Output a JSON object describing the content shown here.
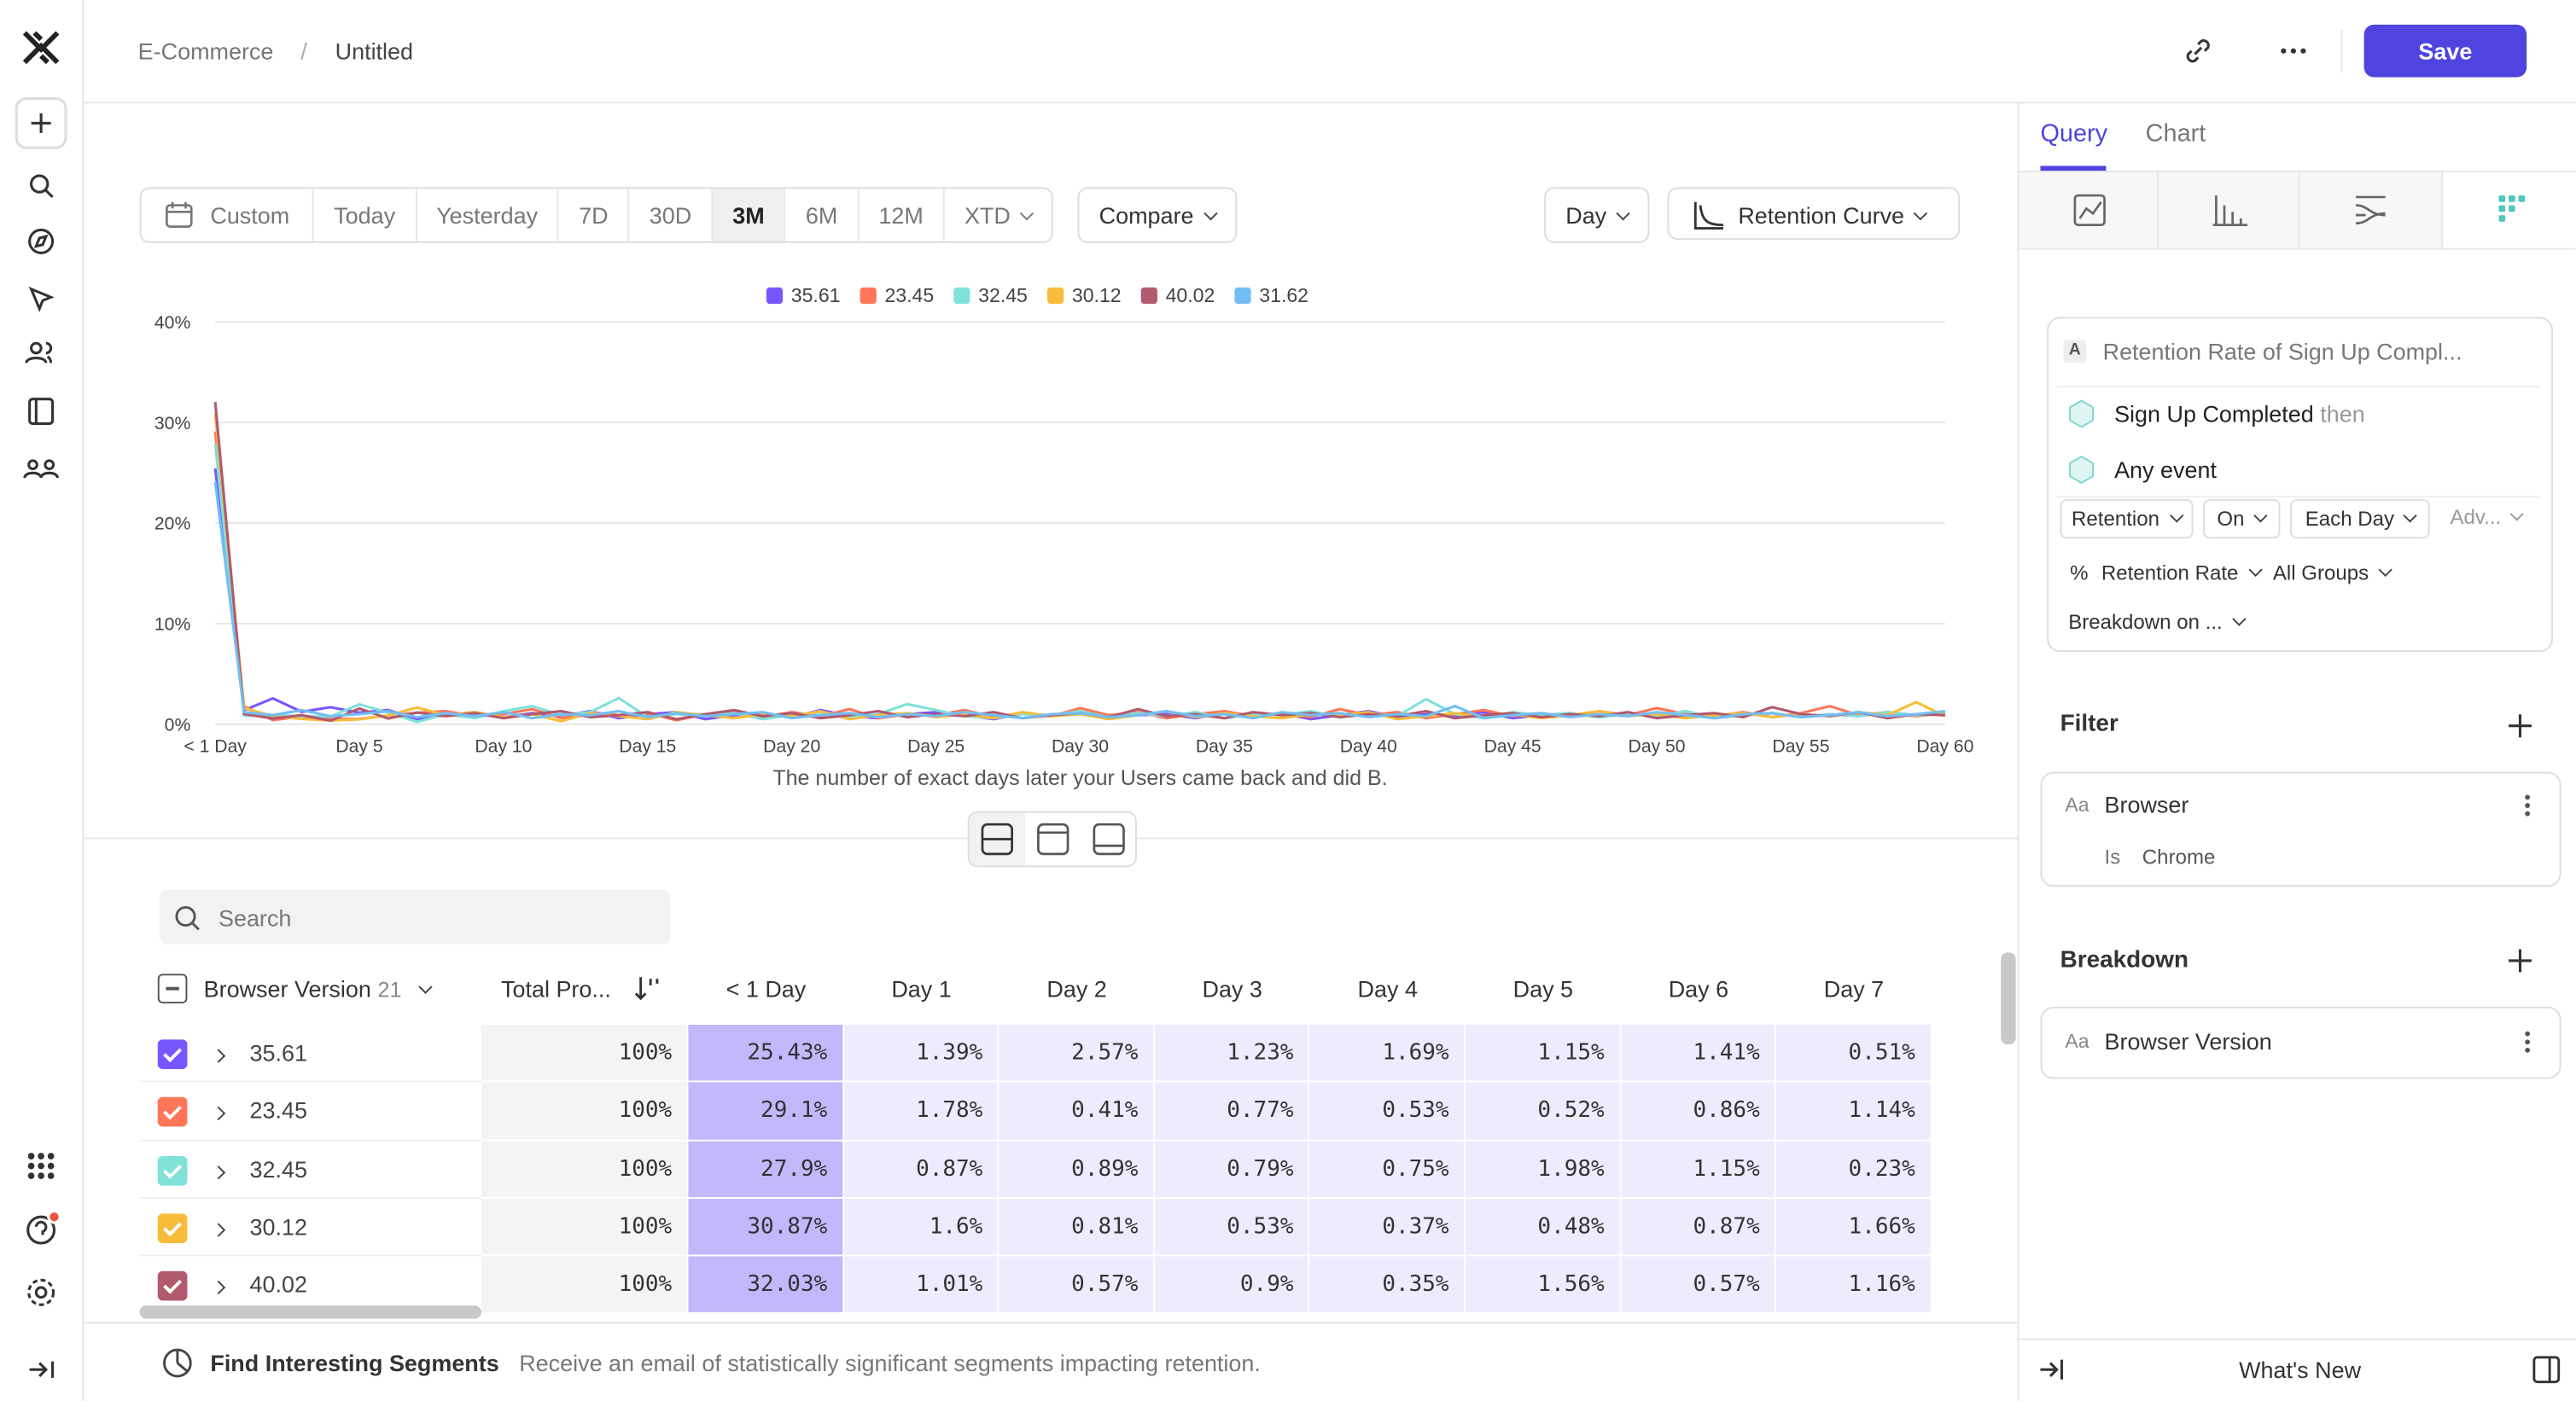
{
  "header": {
    "breadcrumb": [
      "E-Commerce",
      "Untitled"
    ],
    "save": "Save"
  },
  "date_range": {
    "options": [
      "Custom",
      "Today",
      "Yesterday",
      "7D",
      "30D",
      "3M",
      "6M",
      "12M",
      "XTD"
    ],
    "selected": "3M",
    "compare": "Compare",
    "interval": "Day",
    "chart_type": "Retention Curve"
  },
  "chart_data": {
    "type": "line",
    "legend": "top",
    "grid": true,
    "x_label": "The number of exact days later your Users came back and did B.",
    "categories": [
      "< 1 Day",
      null,
      null,
      null,
      null,
      "Day 5",
      null,
      null,
      null,
      null,
      "Day 10",
      null,
      null,
      null,
      null,
      "Day 15",
      null,
      null,
      null,
      null,
      "Day 20",
      null,
      null,
      null,
      null,
      "Day 25",
      null,
      null,
      null,
      null,
      "Day 30",
      null,
      null,
      null,
      null,
      "Day 35",
      null,
      null,
      null,
      null,
      "Day 40",
      null,
      null,
      null,
      null,
      "Day 45",
      null,
      null,
      null,
      null,
      "Day 50",
      null,
      null,
      null,
      null,
      "Day 55",
      null,
      null,
      null,
      null,
      "Day 60"
    ],
    "ylim": [
      0,
      40
    ],
    "yticks": [
      {
        "value": 0,
        "label": "0%"
      },
      {
        "value": 10,
        "label": "10%"
      },
      {
        "value": 20,
        "label": "20%"
      },
      {
        "value": 30,
        "label": "30%"
      },
      {
        "value": 40,
        "label": "40%"
      }
    ],
    "series": [
      {
        "name": "35.61",
        "color": "#7856ff",
        "values": [
          25.43,
          1.39,
          2.57,
          1.23,
          1.69,
          1.15,
          1.41,
          0.51,
          0.9,
          1.2,
          0.7,
          1.1,
          0.8,
          1.3,
          0.6,
          1.0,
          1.2,
          0.5,
          0.9,
          1.1,
          0.7,
          1.4,
          0.8,
          0.6,
          1.0,
          1.2,
          0.9,
          0.5,
          1.1,
          0.8,
          1.3,
          0.7,
          0.9,
          1.0,
          0.6,
          1.2,
          0.8,
          1.1,
          0.5,
          0.9,
          1.3,
          0.7,
          1.0,
          0.8,
          1.2,
          0.6,
          0.9,
          1.1,
          0.7,
          1.0,
          0.8,
          1.3,
          0.6,
          0.9,
          1.1,
          0.7,
          1.0,
          0.8,
          1.2,
          0.9,
          1.0
        ]
      },
      {
        "name": "23.45",
        "color": "#ff7557",
        "values": [
          29.1,
          1.78,
          0.41,
          0.77,
          0.53,
          0.52,
          0.86,
          1.14,
          1.3,
          0.8,
          1.0,
          1.5,
          0.6,
          1.2,
          0.9,
          1.1,
          0.4,
          1.0,
          1.3,
          0.7,
          1.2,
          0.8,
          1.5,
          0.6,
          1.0,
          0.9,
          1.4,
          0.7,
          1.1,
          0.8,
          1.6,
          0.9,
          1.2,
          0.6,
          1.0,
          1.3,
          0.8,
          1.1,
          0.7,
          1.5,
          0.9,
          1.2,
          0.6,
          1.0,
          1.4,
          0.8,
          1.1,
          0.7,
          1.3,
          0.9,
          1.6,
          1.0,
          0.8,
          1.2,
          0.7,
          1.1,
          1.8,
          0.9,
          1.2,
          0.8,
          1.1
        ]
      },
      {
        "name": "32.45",
        "color": "#80e1d9",
        "values": [
          27.9,
          0.87,
          0.89,
          0.79,
          0.75,
          1.98,
          1.15,
          0.23,
          1.0,
          0.6,
          1.3,
          1.8,
          0.9,
          1.2,
          2.6,
          0.7,
          1.0,
          0.8,
          1.1,
          0.5,
          0.9,
          1.2,
          0.7,
          1.0,
          2.0,
          1.4,
          0.8,
          0.6,
          1.0,
          0.9,
          1.3,
          0.7,
          1.1,
          0.8,
          1.2,
          0.6,
          1.0,
          0.9,
          1.3,
          0.7,
          1.1,
          0.8,
          2.5,
          1.0,
          0.6,
          1.2,
          0.9,
          1.1,
          0.7,
          1.0,
          0.8,
          1.3,
          0.6,
          0.9,
          1.1,
          0.7,
          1.0,
          0.8,
          1.2,
          0.9,
          1.0
        ]
      },
      {
        "name": "30.12",
        "color": "#f8bc3b",
        "values": [
          30.87,
          1.6,
          0.81,
          0.53,
          0.37,
          0.48,
          0.87,
          1.66,
          0.9,
          1.2,
          0.7,
          1.0,
          0.3,
          1.1,
          0.8,
          0.5,
          1.2,
          0.9,
          0.6,
          1.0,
          0.8,
          1.3,
          0.5,
          0.9,
          1.1,
          0.7,
          1.0,
          0.6,
          1.2,
          0.8,
          1.0,
          0.5,
          0.9,
          1.3,
          0.7,
          1.1,
          0.8,
          0.6,
          1.0,
          0.9,
          1.2,
          0.5,
          0.8,
          1.1,
          0.7,
          1.0,
          0.6,
          0.9,
          1.3,
          0.8,
          1.0,
          0.6,
          0.9,
          1.1,
          0.7,
          1.0,
          0.8,
          1.2,
          0.9,
          2.2,
          0.8
        ]
      },
      {
        "name": "40.02",
        "color": "#b2596e",
        "values": [
          32.03,
          1.01,
          0.57,
          0.9,
          0.35,
          1.56,
          0.57,
          1.16,
          0.8,
          1.1,
          0.6,
          1.0,
          1.3,
          0.7,
          0.9,
          1.2,
          0.5,
          1.0,
          1.4,
          0.8,
          1.1,
          0.6,
          0.9,
          1.3,
          0.7,
          1.0,
          0.8,
          1.2,
          0.6,
          0.9,
          1.1,
          0.7,
          1.5,
          0.8,
          1.0,
          0.6,
          1.2,
          0.9,
          1.1,
          0.7,
          1.0,
          0.8,
          1.3,
          0.6,
          0.9,
          1.1,
          0.7,
          1.0,
          0.8,
          1.2,
          0.6,
          0.9,
          1.1,
          0.7,
          1.7,
          1.0,
          0.8,
          1.2,
          0.6,
          1.0,
          0.9
        ]
      },
      {
        "name": "31.62",
        "color": "#72bef4",
        "values": [
          24.1,
          1.2,
          0.9,
          1.4,
          0.8,
          1.0,
          1.3,
          0.7,
          1.1,
          0.8,
          1.2,
          0.6,
          1.0,
          0.9,
          1.3,
          0.7,
          1.1,
          0.8,
          1.0,
          1.2,
          0.6,
          0.9,
          1.1,
          0.7,
          1.0,
          0.8,
          1.2,
          0.9,
          0.6,
          1.0,
          1.1,
          0.7,
          0.9,
          1.3,
          0.8,
          1.0,
          0.6,
          1.2,
          0.9,
          1.1,
          0.7,
          1.0,
          0.8,
          1.8,
          0.6,
          0.9,
          1.1,
          0.7,
          1.0,
          0.8,
          1.2,
          0.9,
          0.6,
          1.0,
          1.1,
          0.7,
          0.9,
          1.2,
          0.8,
          1.0,
          1.3
        ]
      }
    ]
  },
  "table": {
    "search_placeholder": "Search",
    "group_count": 21,
    "columns": [
      "Browser Version",
      "Total Pro...",
      "< 1 Day",
      "Day 1",
      "Day 2",
      "Day 3",
      "Day 4",
      "Day 5",
      "Day 6",
      "Day 7"
    ],
    "rows": [
      [
        "35.61",
        "100%",
        "25.43%",
        "1.39%",
        "2.57%",
        "1.23%",
        "1.69%",
        "1.15%",
        "1.41%",
        "0.51%"
      ],
      [
        "23.45",
        "100%",
        "29.1%",
        "1.78%",
        "0.41%",
        "0.77%",
        "0.53%",
        "0.52%",
        "0.86%",
        "1.14%"
      ],
      [
        "32.45",
        "100%",
        "27.9%",
        "0.87%",
        "0.89%",
        "0.79%",
        "0.75%",
        "1.98%",
        "1.15%",
        "0.23%"
      ],
      [
        "30.12",
        "100%",
        "30.87%",
        "1.6%",
        "0.81%",
        "0.53%",
        "0.37%",
        "0.48%",
        "0.87%",
        "1.66%"
      ],
      [
        "40.02",
        "100%",
        "32.03%",
        "1.01%",
        "0.57%",
        "0.9%",
        "0.35%",
        "1.56%",
        "0.57%",
        "1.16%"
      ]
    ]
  },
  "footer": {
    "title": "Find Interesting Segments",
    "text": "Receive an email of statistically significant segments impacting retention."
  },
  "panel": {
    "tabs": [
      "Query",
      "Chart"
    ],
    "metric": {
      "letter": "A",
      "name": "Retention Rate of Sign Up Compl...",
      "event1": "Sign Up Completed",
      "then": "then",
      "event2": "Any event",
      "options": [
        "Retention",
        "On",
        "Each Day",
        "Adv..."
      ],
      "options2": [
        "%",
        "Retention Rate",
        "All Groups"
      ],
      "breakdown_on": "Breakdown on ..."
    },
    "filter": {
      "title": "Filter",
      "prop_type": "Aa",
      "property": "Browser",
      "operator": "Is",
      "value": "Chrome"
    },
    "breakdown": {
      "title": "Breakdown",
      "prop_type": "Aa",
      "property": "Browser Version"
    },
    "whats_new": "What's New"
  }
}
